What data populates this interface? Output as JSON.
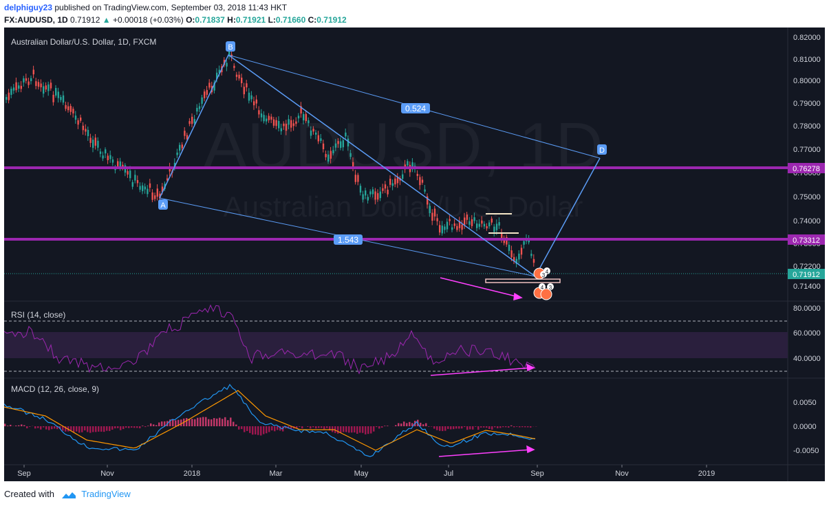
{
  "header": {
    "user": "delphiguy23",
    "published_text": "published on TradingView.com, September 03, 2018 11:43 HKT",
    "symbol": "FX:AUDUSD, 1D",
    "last": "0.71912",
    "change": "+0.00018 (+0.03%)",
    "open_label": "O:",
    "open": "0.71837",
    "high_label": "H:",
    "high": "0.71921",
    "low_label": "L:",
    "low": "0.71660",
    "close_label": "C:",
    "close": "0.71912"
  },
  "chart": {
    "title": "Australian Dollar/U.S. Dollar, 1D, FXCM",
    "watermark_symbol": "AUDUSD, 1D",
    "watermark_name": "Australian Dollar/U.S. Dollar",
    "price_ticks": [
      "0.82000",
      "0.81000",
      "0.80000",
      "0.79000",
      "0.78000",
      "0.77000",
      "0.76000",
      "0.75000",
      "0.74000",
      "0.73000",
      "0.72200",
      "0.71400"
    ],
    "price_badges": [
      "0.76278",
      "0.73312",
      "0.71912"
    ],
    "pattern_points": [
      "A",
      "B",
      "D"
    ],
    "ratio_labels": [
      "0.524",
      "1.543"
    ],
    "marker_numbers": [
      "4",
      "3",
      "4",
      "3"
    ],
    "time_labels": [
      "Sep",
      "Nov",
      "2018",
      "Mar",
      "May",
      "Jul",
      "Sep",
      "Nov",
      "2019"
    ],
    "colors": {
      "background": "#131722",
      "up": "#26a69a",
      "down": "#ef5350",
      "level": "#9c27b0",
      "pattern": "#5b9cf6",
      "annotation": "#ff40ff"
    }
  },
  "rsi": {
    "title": "RSI (14, close)",
    "ticks": [
      "80.0000",
      "60.0000",
      "40.0000"
    ]
  },
  "macd": {
    "title": "MACD (12, 26, close, 9)",
    "ticks": [
      "0.0050",
      "0.0000",
      "-0.0050"
    ]
  },
  "footer": {
    "created_with": "Created with",
    "brand": "TradingView"
  }
}
